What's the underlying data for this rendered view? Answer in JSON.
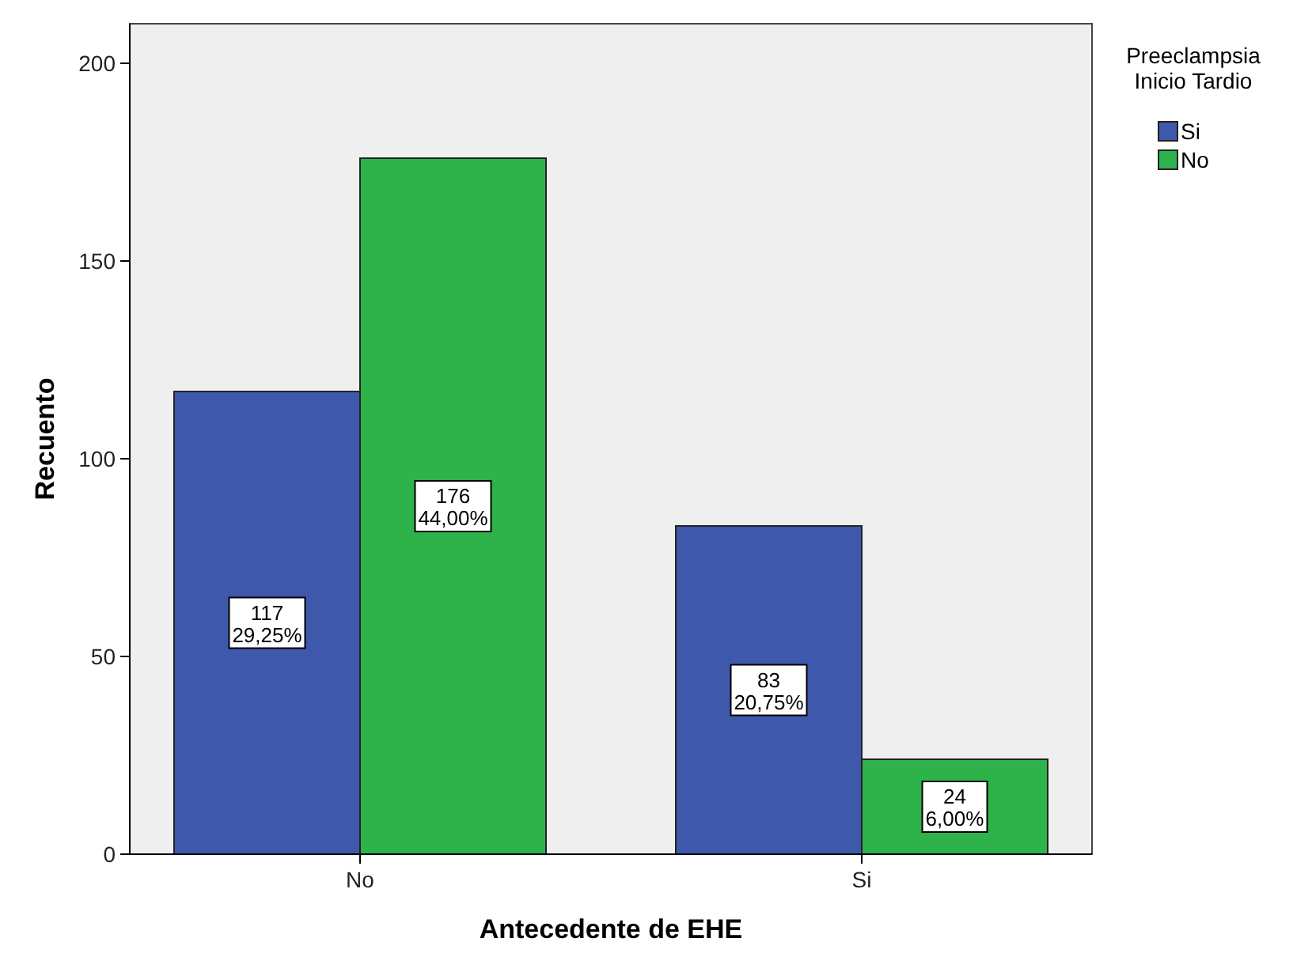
{
  "chart_data": {
    "type": "bar",
    "xlabel": "Antecedente de EHE",
    "ylabel": "Recuento",
    "legend_title": "Preeclampsia\nInicio Tardio",
    "categories": [
      "No",
      "Si"
    ],
    "series": [
      {
        "name": "Si",
        "color": "#3e58ac",
        "values": [
          117,
          83
        ],
        "value_labels": [
          "117\n29,25%",
          "83\n20,75%"
        ]
      },
      {
        "name": "No",
        "color": "#2db34a",
        "values": [
          176,
          24
        ],
        "value_labels": [
          "176\n44,00%",
          "24\n6,00%"
        ]
      }
    ],
    "ylim": [
      0,
      210
    ],
    "yticks": [
      0,
      50,
      100,
      150,
      200
    ],
    "grid": false,
    "legend": "top right"
  }
}
